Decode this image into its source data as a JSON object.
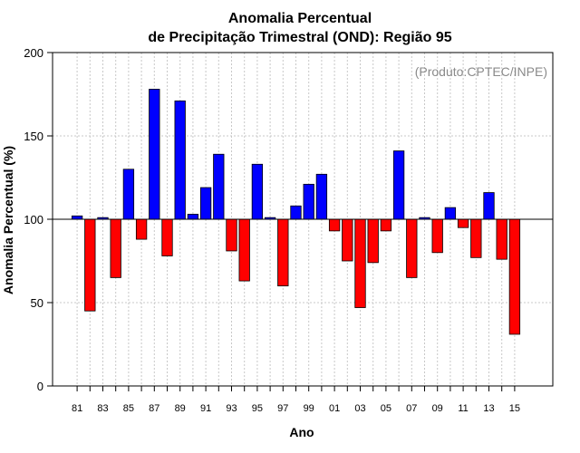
{
  "chart_data": {
    "type": "bar",
    "title_line1": "Anomalia Percentual",
    "title_line2": "de Precipitação Trimestral (OND): Região 95",
    "xlabel": "Ano",
    "ylabel": "Anomalia Percentual (%)",
    "annotation": "(Produto:CPTEC/INPE)",
    "ylim": [
      0,
      200
    ],
    "yticks": [
      "0",
      "50",
      "100",
      "150",
      "200"
    ],
    "baseline": 100,
    "grid": true,
    "colors": {
      "above": "#0000ff",
      "below": "#ff0000"
    },
    "categories": [
      "81",
      "82",
      "83",
      "84",
      "85",
      "86",
      "87",
      "88",
      "89",
      "90",
      "91",
      "92",
      "93",
      "94",
      "95",
      "96",
      "97",
      "98",
      "99",
      "00",
      "01",
      "02",
      "03",
      "04",
      "05",
      "06",
      "07",
      "08",
      "09",
      "10",
      "11",
      "12",
      "13",
      "14",
      "15"
    ],
    "x_tick_labels": [
      "81",
      "83",
      "85",
      "87",
      "89",
      "91",
      "93",
      "95",
      "97",
      "99",
      "01",
      "03",
      "05",
      "07",
      "09",
      "11",
      "13",
      "15"
    ],
    "values": [
      102,
      45,
      101,
      65,
      130,
      88,
      178,
      78,
      171,
      103,
      119,
      139,
      81,
      63,
      133,
      101,
      60,
      108,
      121,
      127,
      93,
      75,
      47,
      74,
      93,
      141,
      65,
      101,
      80,
      107,
      95,
      77,
      116,
      76,
      31
    ]
  }
}
